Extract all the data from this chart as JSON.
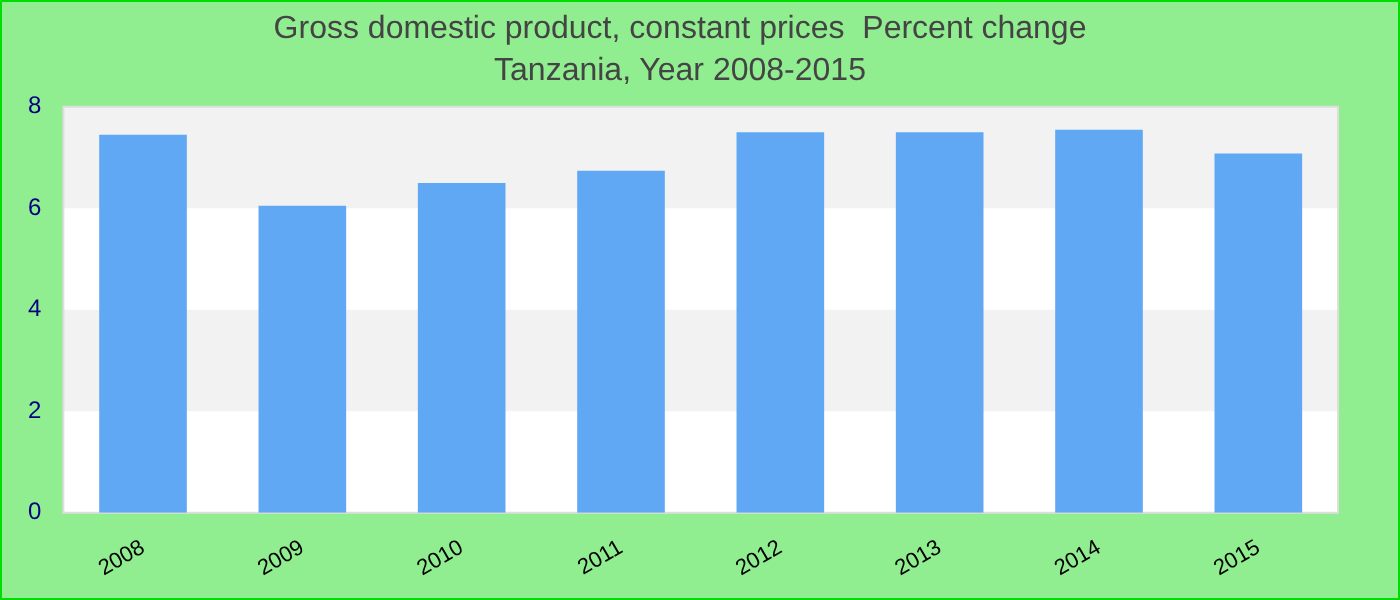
{
  "chart_data": {
    "type": "bar",
    "title": "Gross domestic product, constant prices  Percent change",
    "subtitle": "Tanzania, Year 2008-2015",
    "categories": [
      "2008",
      "2009",
      "2010",
      "2011",
      "2012",
      "2013",
      "2014",
      "2015"
    ],
    "values": [
      7.45,
      6.05,
      6.5,
      6.74,
      7.5,
      7.5,
      7.55,
      7.08
    ],
    "color": "#60a8f4",
    "ylim": [
      0,
      8
    ],
    "yticks": [
      0,
      2,
      4,
      6,
      8
    ]
  }
}
